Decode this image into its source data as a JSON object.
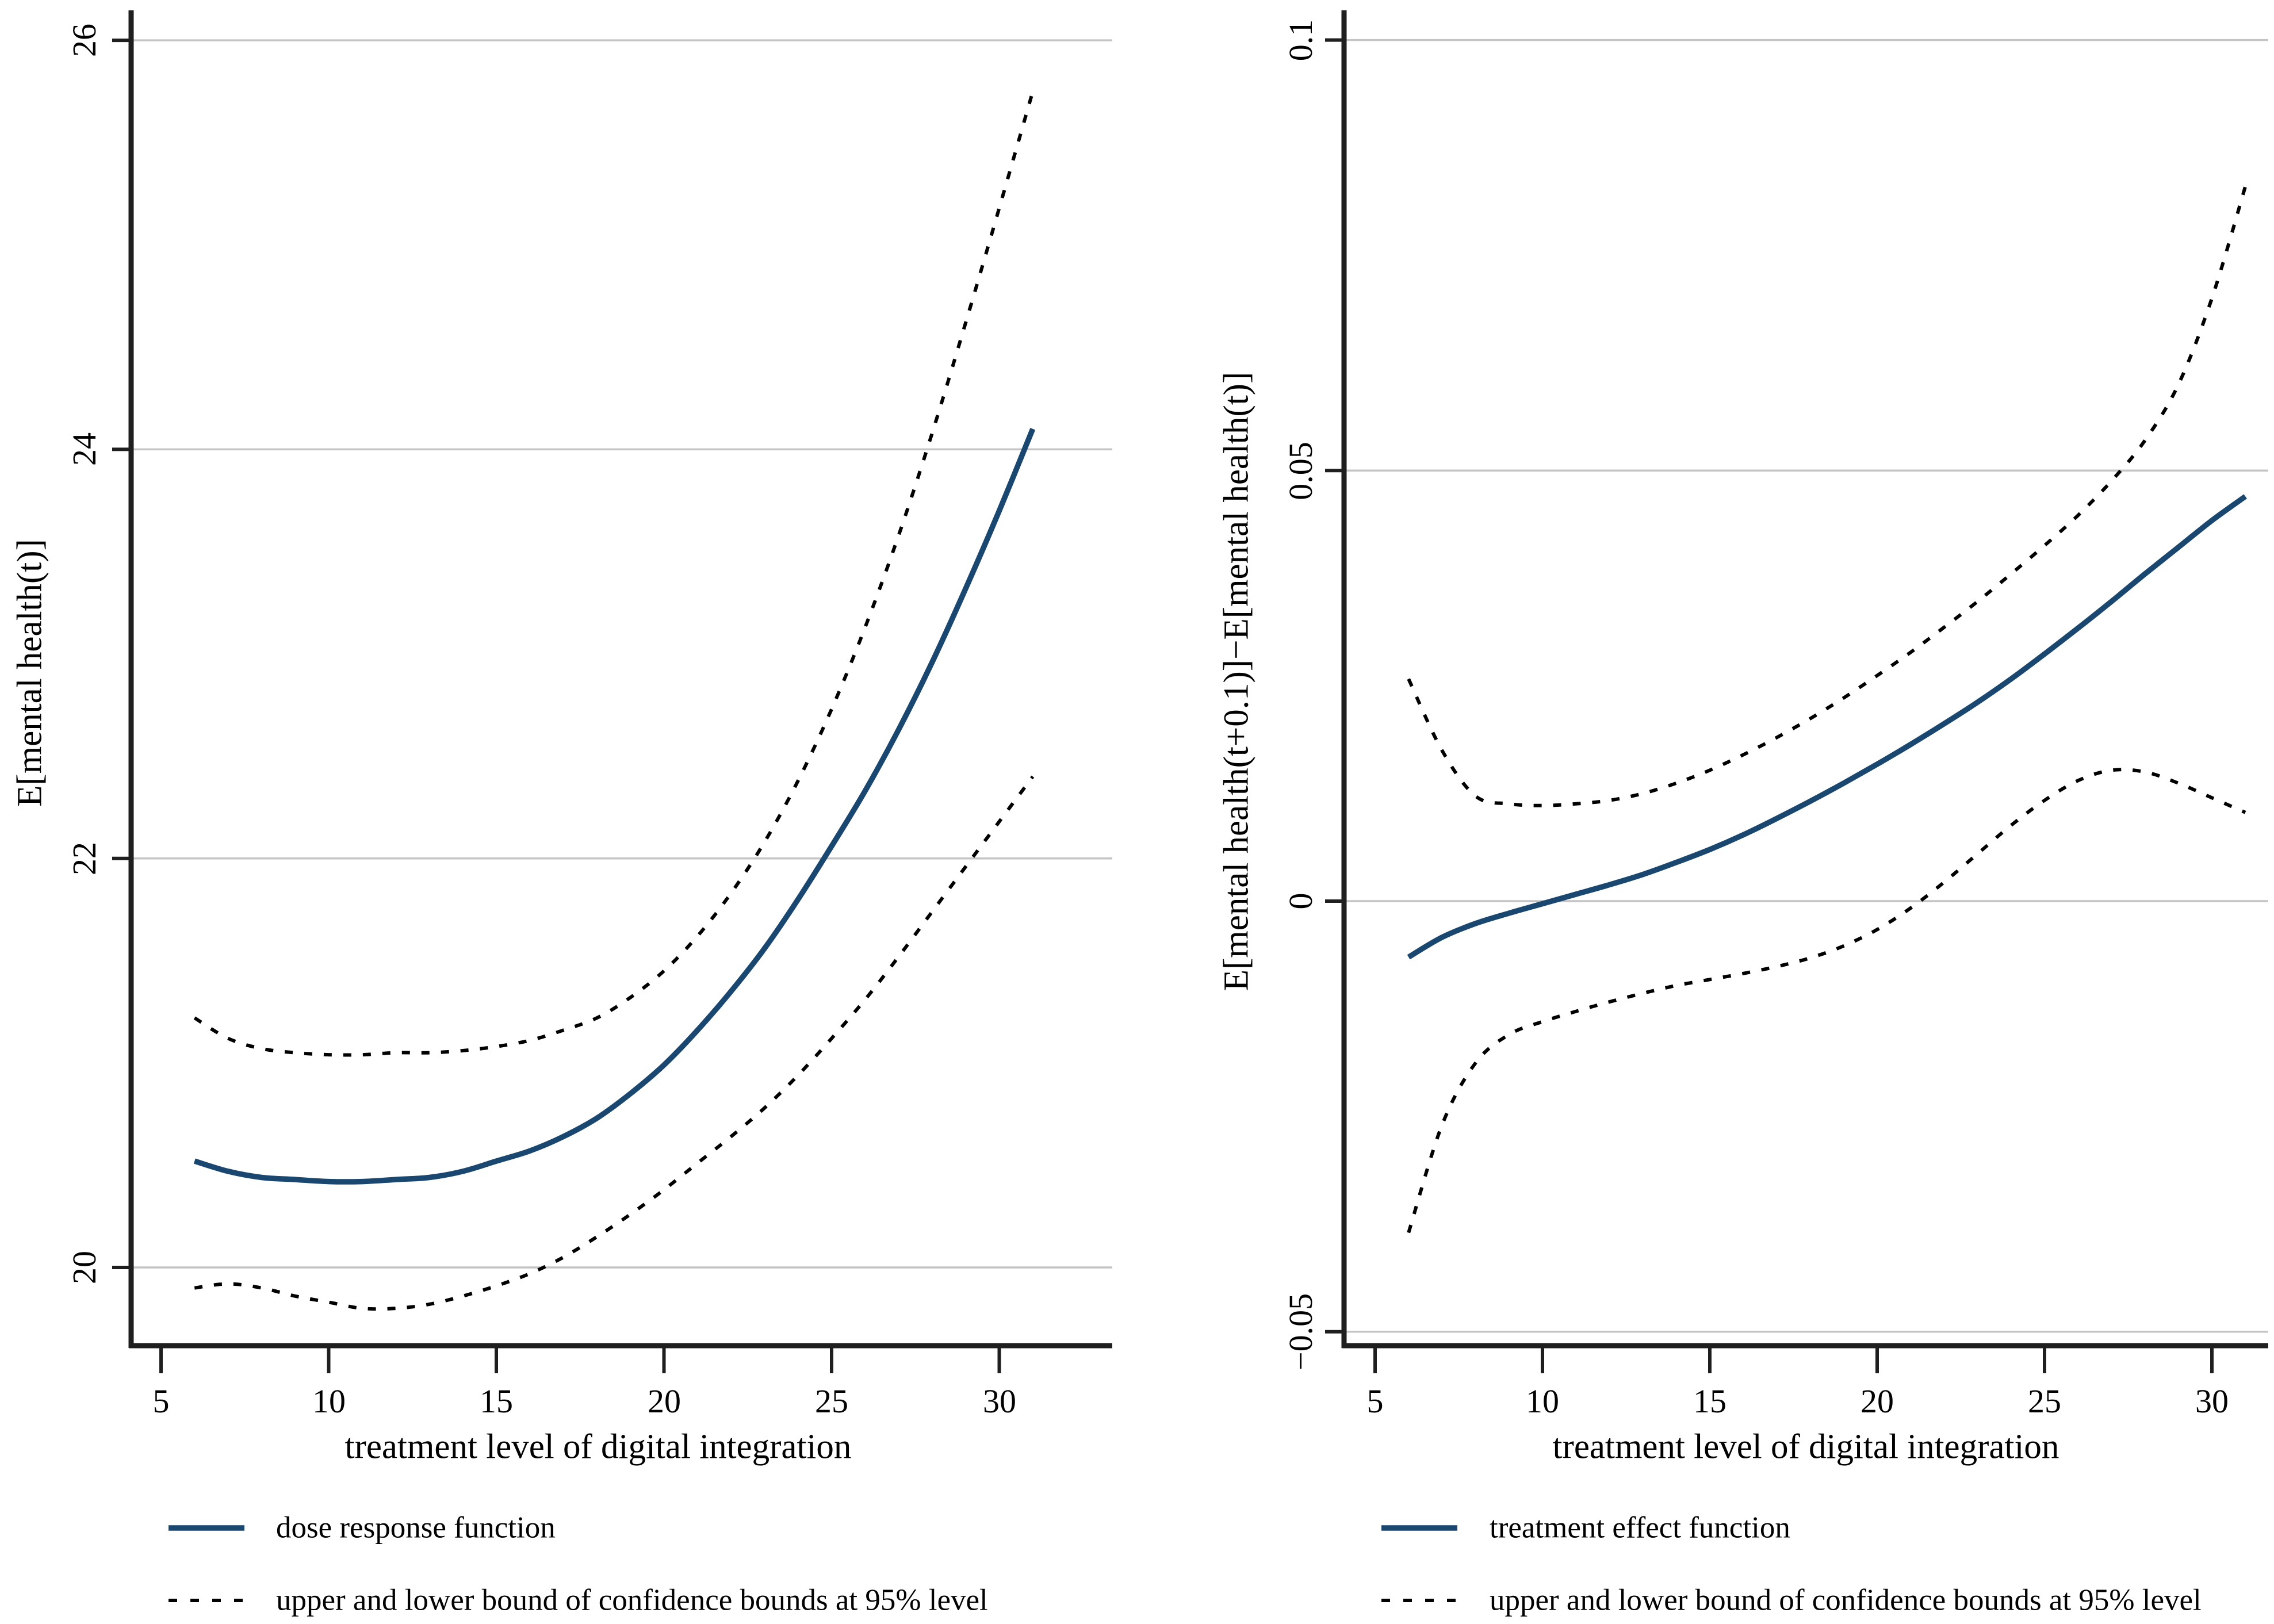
{
  "page": {
    "background": "#ffffff"
  },
  "chart_data": {
    "type": "line",
    "layout": "two-panel figure, Stata-style dose response plot",
    "grid": true,
    "colors": {
      "line": "#1a476f",
      "ci": "#000000",
      "grid": "#c4c4c4",
      "axis": "#1f1f1f",
      "text": "#000000"
    },
    "panels": [
      {
        "id": "left",
        "ylabel": "E[mental health(t)]",
        "xlabel": "treatment level of digital integration",
        "xlim": [
          4.2,
          33.4
        ],
        "ylim": [
          19.62,
          26.14
        ],
        "yticks": [
          {
            "value": 26,
            "label": "26"
          },
          {
            "value": 24,
            "label": "24"
          },
          {
            "value": 22,
            "label": "22"
          },
          {
            "value": 20,
            "label": "20"
          }
        ],
        "xticks": [
          {
            "value": 5,
            "label": "5"
          },
          {
            "value": 10,
            "label": "10"
          },
          {
            "value": 15,
            "label": "15"
          },
          {
            "value": 20,
            "label": "20"
          },
          {
            "value": 25,
            "label": "25"
          },
          {
            "value": 30,
            "label": "30"
          }
        ],
        "series": [
          {
            "role": "point-estimate",
            "style": "solid",
            "x": [
              6,
              7,
              8,
              9,
              10,
              11,
              12,
              13,
              14,
              15,
              16,
              17,
              18,
              19,
              20,
              21,
              22,
              23,
              24,
              25,
              26,
              27,
              28,
              29,
              30,
              31
            ],
            "y": [
              20.52,
              20.47,
              20.44,
              20.43,
              20.42,
              20.42,
              20.43,
              20.44,
              20.47,
              20.52,
              20.57,
              20.64,
              20.73,
              20.85,
              20.99,
              21.16,
              21.35,
              21.56,
              21.8,
              22.06,
              22.33,
              22.63,
              22.96,
              23.32,
              23.7,
              24.1
            ]
          },
          {
            "role": "upper-ci",
            "style": "dashed",
            "x": [
              6,
              7,
              8,
              9,
              10,
              11,
              12,
              13,
              14,
              15,
              16,
              17,
              18,
              19,
              20,
              21,
              22,
              23,
              24,
              25,
              26,
              27,
              28,
              29,
              30,
              31
            ],
            "y": [
              21.22,
              21.12,
              21.07,
              21.05,
              21.04,
              21.04,
              21.05,
              21.05,
              21.06,
              21.08,
              21.11,
              21.16,
              21.22,
              21.32,
              21.45,
              21.62,
              21.83,
              22.08,
              22.38,
              22.73,
              23.13,
              23.58,
              24.08,
              24.62,
              25.18,
              25.75
            ]
          },
          {
            "role": "lower-ci",
            "style": "dashed",
            "x": [
              6,
              7,
              8,
              9,
              10,
              11,
              12,
              13,
              14,
              15,
              16,
              17,
              18,
              19,
              20,
              21,
              22,
              23,
              24,
              25,
              26,
              27,
              28,
              29,
              30,
              31
            ],
            "y": [
              19.9,
              19.92,
              19.9,
              19.86,
              19.83,
              19.8,
              19.8,
              19.82,
              19.86,
              19.91,
              19.97,
              20.05,
              20.15,
              20.26,
              20.38,
              20.51,
              20.64,
              20.78,
              20.94,
              21.12,
              21.31,
              21.52,
              21.74,
              21.96,
              22.18,
              22.4
            ]
          }
        ],
        "legend": [
          {
            "style": "solid",
            "label": "dose response function"
          },
          {
            "style": "dashed",
            "label": "upper and lower bound of confidence bounds at 95% level"
          }
        ]
      },
      {
        "id": "right",
        "ylabel": "E[mental health(t+0.1)]−E[mental health(t)]",
        "xlabel": "treatment level of digital integration",
        "xlim": [
          4.1,
          31.7
        ],
        "ylim": [
          -0.0516,
          0.1033
        ],
        "yticks": [
          {
            "value": 0.1,
            "label": "0.1"
          },
          {
            "value": 0.05,
            "label": "0.05"
          },
          {
            "value": 0,
            "label": "0"
          },
          {
            "value": -0.05,
            "label": "−0.05"
          }
        ],
        "xticks": [
          {
            "value": 5,
            "label": "5"
          },
          {
            "value": 10,
            "label": "10"
          },
          {
            "value": 15,
            "label": "15"
          },
          {
            "value": 20,
            "label": "20"
          },
          {
            "value": 25,
            "label": "25"
          },
          {
            "value": 30,
            "label": "30"
          }
        ],
        "series": [
          {
            "role": "point-estimate",
            "style": "solid",
            "x": [
              6,
              7,
              8,
              9,
              10,
              11,
              12,
              13,
              14,
              15,
              16,
              17,
              18,
              19,
              20,
              21,
              22,
              23,
              24,
              25,
              26,
              27,
              28,
              29,
              30,
              31
            ],
            "y": [
              -0.0065,
              -0.0042,
              -0.0026,
              -0.0014,
              -0.0003,
              0.0008,
              0.0019,
              0.0031,
              0.0045,
              0.006,
              0.0077,
              0.0096,
              0.0116,
              0.0137,
              0.0159,
              0.0182,
              0.0206,
              0.0231,
              0.0258,
              0.0287,
              0.0317,
              0.0348,
              0.038,
              0.0411,
              0.0442,
              0.047
            ]
          },
          {
            "role": "upper-ci",
            "style": "dashed",
            "x": [
              6,
              7,
              8,
              9,
              10,
              11,
              12,
              13,
              14,
              15,
              16,
              17,
              18,
              19,
              20,
              21,
              22,
              23,
              24,
              25,
              26,
              27,
              28,
              29,
              30,
              31
            ],
            "y": [
              0.0258,
              0.0175,
              0.0122,
              0.0113,
              0.0111,
              0.0113,
              0.0117,
              0.0125,
              0.0137,
              0.0152,
              0.017,
              0.019,
              0.0212,
              0.0236,
              0.0262,
              0.0289,
              0.0318,
              0.0348,
              0.038,
              0.0413,
              0.0448,
              0.0488,
              0.0535,
              0.06,
              0.07,
              0.083
            ]
          },
          {
            "role": "lower-ci",
            "style": "dashed",
            "x": [
              6,
              7,
              8,
              9,
              10,
              11,
              12,
              13,
              14,
              15,
              16,
              17,
              18,
              19,
              20,
              21,
              22,
              23,
              24,
              25,
              26,
              27,
              28,
              29,
              30,
              31
            ],
            "y": [
              -0.0385,
              -0.026,
              -0.0188,
              -0.0155,
              -0.014,
              -0.0128,
              -0.0117,
              -0.0107,
              -0.0098,
              -0.0091,
              -0.0084,
              -0.0076,
              -0.0066,
              -0.0052,
              -0.0033,
              -0.0008,
              0.0022,
              0.0055,
              0.0088,
              0.0117,
              0.014,
              0.0152,
              0.015,
              0.0137,
              0.012,
              0.0103
            ]
          }
        ],
        "legend": [
          {
            "style": "solid",
            "label": "treatment effect function"
          },
          {
            "style": "dashed",
            "label": "upper and lower bound of confidence bounds at 95% level"
          }
        ]
      }
    ]
  }
}
